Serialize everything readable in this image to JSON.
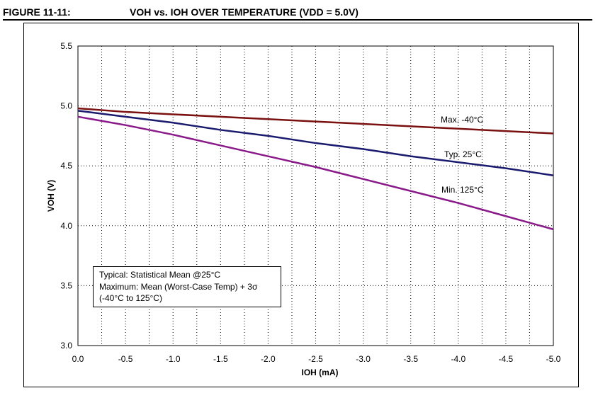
{
  "figure": {
    "label": "FIGURE 11-11:",
    "title": "VOH vs. IOH OVER TEMPERATURE (VDD = 5.0V)"
  },
  "note": {
    "lines": [
      "Typical: Statistical Mean @25°C",
      "Maximum: Mean (Worst-Case Temp) + 3σ",
      "(-40°C to 125°C)"
    ]
  },
  "chart_data": {
    "type": "line",
    "xlabel": "IOH (mA)",
    "ylabel": "VOH (V)",
    "xlim": [
      0.0,
      -5.0
    ],
    "ylim": [
      3.0,
      5.5
    ],
    "x_ticks": [
      "0.0",
      "-0.5",
      "-1.0",
      "-1.5",
      "-2.0",
      "-2.5",
      "-3.0",
      "-3.5",
      "-4.0",
      "-4.5",
      "-5.0"
    ],
    "y_ticks": [
      "3.0",
      "3.5",
      "4.0",
      "4.5",
      "5.0",
      "5.5"
    ],
    "grid": true,
    "x": [
      0.0,
      -0.5,
      -1.0,
      -1.5,
      -2.0,
      -2.5,
      -3.0,
      -3.5,
      -4.0,
      -4.5,
      -5.0
    ],
    "series": [
      {
        "name": "Max. -40°C",
        "color": "#7a1010",
        "values": [
          4.98,
          4.95,
          4.93,
          4.91,
          4.89,
          4.87,
          4.85,
          4.83,
          4.81,
          4.79,
          4.77
        ]
      },
      {
        "name": "Typ. 25°C",
        "color": "#1a1a6e",
        "values": [
          4.96,
          4.91,
          4.86,
          4.8,
          4.75,
          4.69,
          4.64,
          4.58,
          4.53,
          4.48,
          4.42
        ]
      },
      {
        "name": "Min. 125°C",
        "color": "#8a1a8a",
        "values": [
          4.91,
          4.84,
          4.76,
          4.67,
          4.58,
          4.49,
          4.39,
          4.29,
          4.19,
          4.08,
          3.97
        ]
      }
    ]
  }
}
